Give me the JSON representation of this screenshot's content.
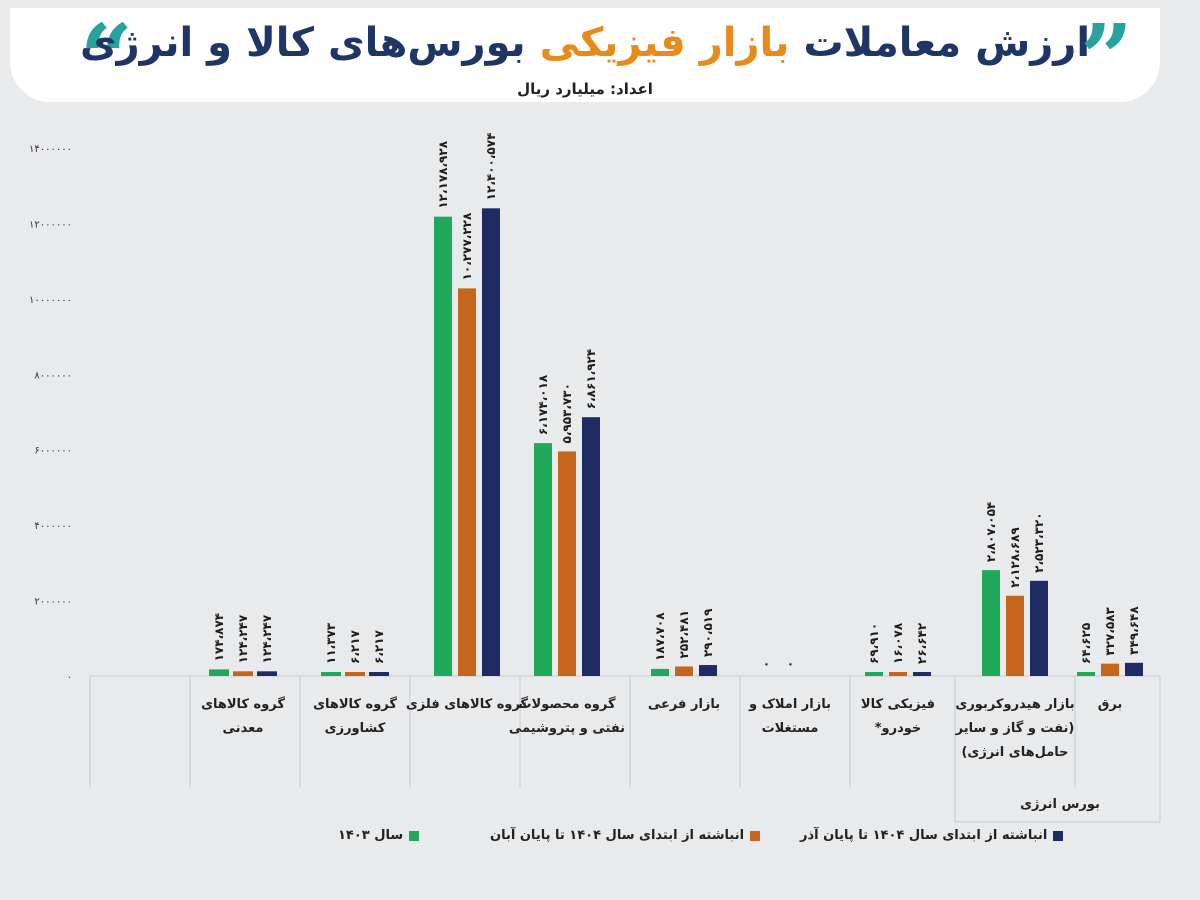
{
  "header": {
    "title_part1": "ارزش معاملات",
    "title_highlight": "بازار فیزیکی",
    "title_part2": "بورس‌های کالا و انرژی",
    "unit_label": "اعداد: میلیارد ریال"
  },
  "colors": {
    "s1403": "#22a85a",
    "s1404aban": "#c5661c",
    "s1404azar": "#1f2c63",
    "title": "#1f3566",
    "highlight": "#e98a1d",
    "quote": "#26a39c"
  },
  "chart_data": {
    "type": "bar",
    "ylim": [
      0,
      14000000
    ],
    "yticks": [
      0,
      2000000,
      4000000,
      6000000,
      8000000,
      10000000,
      12000000,
      14000000
    ],
    "ytick_labels": [
      "۰",
      "۲۰۰۰۰۰۰",
      "۴۰۰۰۰۰۰",
      "۶۰۰۰۰۰۰",
      "۸۰۰۰۰۰۰",
      "۱۰۰۰۰۰۰۰",
      "۱۲۰۰۰۰۰۰",
      "۱۴۰۰۰۰۰۰"
    ],
    "categories": [
      [
        "گروه کالاهای",
        "معدنی"
      ],
      [
        "گروه کالاهای",
        "کشاورزی"
      ],
      [
        "گروه کالاهای فلزی"
      ],
      [
        "گروه محصولات",
        "نفتی و پتروشیمی"
      ],
      [
        "بازار فرعی"
      ],
      [
        "بازار املاک و",
        "مستغلات"
      ],
      [
        "فیزیکی کالا",
        "خودرو*"
      ],
      [
        "بازار هیدروکربوری",
        "(نفت و گاز و سایر",
        "حامل‌های انرژی)"
      ],
      [
        "برق"
      ]
    ],
    "group_label": "بورس انرژی",
    "series": [
      {
        "name": "سال ۱۴۰۳",
        "values": [
          174874,
          11373,
          12178928,
          6174018,
          187708,
          0,
          69910,
          2807054,
          64625
        ],
        "labels": [
          "۱۷۴،۸۷۴",
          "۱۱،۳۷۳",
          "۱۲،۱۷۸،۹۲۸",
          "۶،۱۷۴،۰۱۸",
          "۱۸۷،۷۰۸",
          "۰",
          "۶۹،۹۱۰",
          "۲،۸۰۷،۰۵۴",
          "۶۴،۶۲۵"
        ]
      },
      {
        "name": "انباشته از ابتدای سال ۱۴۰۴ تا پایان آبان",
        "values": [
          124247,
          6217,
          10277228,
          5953730,
          252481,
          0,
          16078,
          2128689,
          327583
        ],
        "labels": [
          "۱۲۴،۲۴۷",
          "۶،۲۱۷",
          "۱۰،۲۷۷،۲۲۸",
          "۵،۹۵۳،۷۳۰",
          "۲۵۲،۴۸۱",
          "۰",
          "۱۶،۰۷۸",
          "۲،۱۲۸،۶۸۹",
          "۳۲۷،۵۸۳"
        ]
      },
      {
        "name": "انباشته از ابتدای سال ۱۴۰۴ تا پایان آذر",
        "values": [
          124247,
          6217,
          12400574,
          6861924,
          290519,
          null,
          26642,
          2523320,
          349648
        ],
        "labels": [
          "۱۲۴،۲۴۷",
          "۶،۲۱۷",
          "۱۲،۴۰۰،۵۷۴",
          "۶،۸۶۱،۹۲۴",
          "۲۹۰،۵۱۹",
          "",
          "۲۶،۶۴۲",
          "۲،۵۲۳،۳۲۰",
          "۳۴۹،۶۴۸"
        ]
      }
    ]
  }
}
